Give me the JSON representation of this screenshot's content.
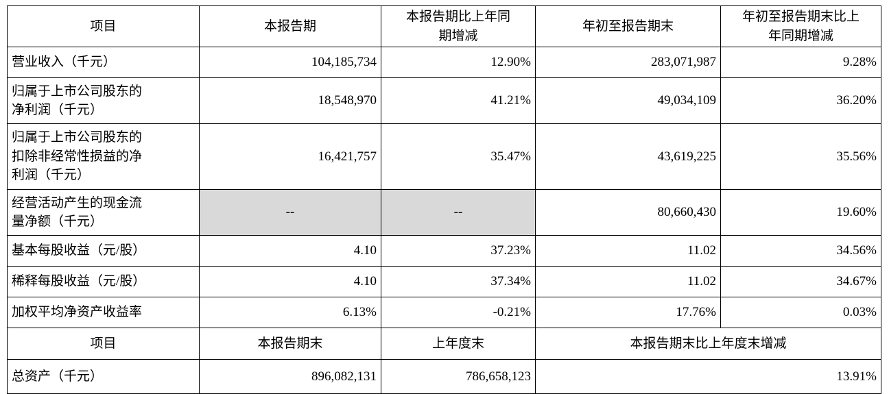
{
  "table": {
    "header1": {
      "col1": "项目",
      "col2": "本报告期",
      "col3": "本报告期比上年同\n期增减",
      "col4": "年初至报告期末",
      "col5": "年初至报告期末比上\n年同期增减"
    },
    "rows": [
      {
        "label": "营业收入（千元）",
        "c1": "104,185,734",
        "c2": "12.90%",
        "c3": "283,071,987",
        "c4": "9.28%"
      },
      {
        "label": "归属于上市公司股东的\n净利润（千元）",
        "c1": "18,548,970",
        "c2": "41.21%",
        "c3": "49,034,109",
        "c4": "36.20%"
      },
      {
        "label": "归属于上市公司股东的\n扣除非经常性损益的净\n利润（千元）",
        "c1": "16,421,757",
        "c2": "35.47%",
        "c3": "43,619,225",
        "c4": "35.56%"
      },
      {
        "label": "经营活动产生的现金流\n量净额（千元）",
        "c1": "--",
        "c2": "--",
        "c3": "80,660,430",
        "c4": "19.60%"
      },
      {
        "label": "基本每股收益（元/股）",
        "c1": "4.10",
        "c2": "37.23%",
        "c3": "11.02",
        "c4": "34.56%"
      },
      {
        "label": "稀释每股收益（元/股）",
        "c1": "4.10",
        "c2": "37.34%",
        "c3": "11.02",
        "c4": "34.67%"
      },
      {
        "label": "加权平均净资产收益率",
        "c1": "6.13%",
        "c2": "-0.21%",
        "c3": "17.76%",
        "c4": "0.03%"
      }
    ],
    "header2": {
      "col1": "项目",
      "col2": "本报告期末",
      "col3": "上年度末",
      "col45": "本报告期末比上年度末增减"
    },
    "row_total": {
      "label": "总资产（千元）",
      "c1": "896,082,131",
      "c2": "786,658,123",
      "c34": "13.91%"
    },
    "colors": {
      "border": "#000000",
      "gray_fill": "#d9d9d9",
      "text": "#000000",
      "background": "#ffffff"
    }
  }
}
